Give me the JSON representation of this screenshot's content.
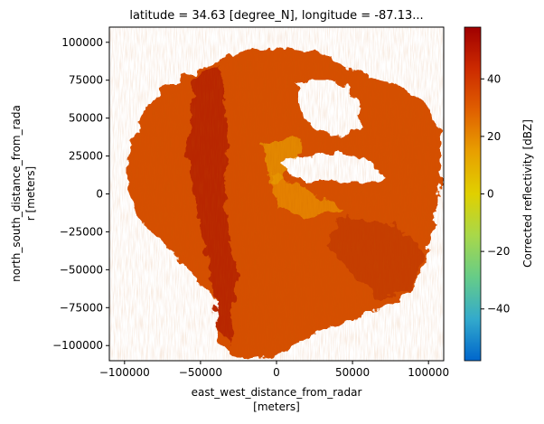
{
  "chart_data": {
    "type": "heatmap",
    "title": "latitude = 34.63 [degree_N], longitude = -87.13...",
    "xlabel_lines": [
      "east_west_distance_from_radar",
      "[meters]"
    ],
    "ylabel_lines": [
      "north_south_distance_from_rada",
      "r [meters]"
    ],
    "xlim": [
      -110000,
      110000
    ],
    "ylim": [
      -110000,
      110000
    ],
    "x_ticks": [
      -100000,
      -50000,
      0,
      50000,
      100000
    ],
    "x_tick_labels": [
      "−100000",
      "−50000",
      "0",
      "50000",
      "100000"
    ],
    "y_ticks": [
      100000,
      75000,
      50000,
      25000,
      0,
      -25000,
      -50000,
      -75000,
      -100000
    ],
    "y_tick_labels": [
      "100000",
      "75000",
      "50000",
      "25000",
      "0",
      "−25000",
      "−50000",
      "−75000",
      "−100000"
    ],
    "colorbar": {
      "label": "Corrected reflectivity [dBZ]",
      "range": [
        -58,
        58
      ],
      "ticks": [
        40,
        20,
        0,
        -20,
        -40
      ],
      "tick_labels": [
        "40",
        "20",
        "0",
        "−20",
        "−40"
      ],
      "colormap": [
        "#0066cc",
        "#33aacc",
        "#66cc88",
        "#a8d84a",
        "#e0d000",
        "#e8a000",
        "#e06000",
        "#cc2a00",
        "#a00000"
      ]
    },
    "dominant_value_range_dBZ": [
      20,
      45
    ],
    "coverage_radius_m": 100000
  }
}
